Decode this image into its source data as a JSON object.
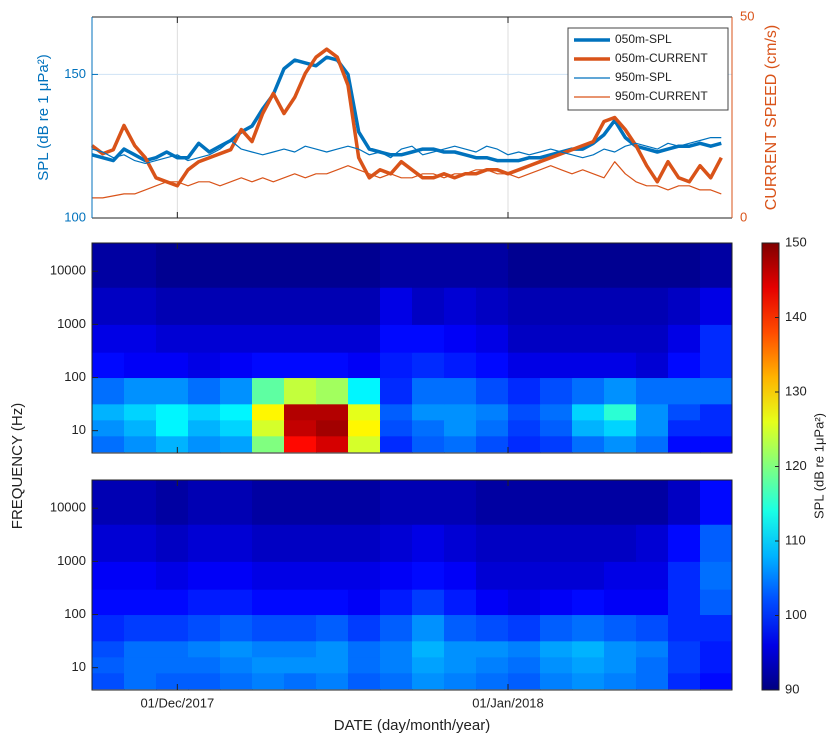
{
  "chart_data": [
    {
      "type": "line",
      "ylabel": "SPL (dB re 1 μPa²)",
      "y2label": "CURRENT SPEED (cm/s)",
      "x": [
        "2017-11-23",
        "2017-11-24",
        "2017-11-25",
        "2017-11-26",
        "2017-11-27",
        "2017-11-28",
        "2017-11-29",
        "2017-11-30",
        "2017-12-01",
        "2017-12-02",
        "2017-12-03",
        "2017-12-04",
        "2017-12-05",
        "2017-12-06",
        "2017-12-07",
        "2017-12-08",
        "2017-12-09",
        "2017-12-10",
        "2017-12-11",
        "2017-12-12",
        "2017-12-13",
        "2017-12-14",
        "2017-12-15",
        "2017-12-16",
        "2017-12-17",
        "2017-12-18",
        "2017-12-19",
        "2017-12-20",
        "2017-12-21",
        "2017-12-22",
        "2017-12-23",
        "2017-12-24",
        "2017-12-25",
        "2017-12-26",
        "2017-12-27",
        "2017-12-28",
        "2017-12-29",
        "2017-12-30",
        "2017-12-31",
        "2018-01-01",
        "2018-01-02",
        "2018-01-03",
        "2018-01-04",
        "2018-01-05",
        "2018-01-06",
        "2018-01-07",
        "2018-01-08",
        "2018-01-09",
        "2018-01-10",
        "2018-01-11",
        "2018-01-12",
        "2018-01-13",
        "2018-01-14",
        "2018-01-15",
        "2018-01-16",
        "2018-01-17",
        "2018-01-18",
        "2018-01-19",
        "2018-01-20",
        "2018-01-21"
      ],
      "xlim": [
        "2017-11-23",
        "2018-01-22"
      ],
      "xticks": [
        "2017-12-01",
        "2018-01-01"
      ],
      "ylim": [
        100,
        170
      ],
      "yticks": [
        100,
        150
      ],
      "y2lim": [
        0,
        50
      ],
      "y2ticks": [
        0,
        50
      ],
      "grid": true,
      "legend": "upper right",
      "series": [
        {
          "name": "050m-SPL",
          "color": "#0072bd",
          "width": 3.5,
          "values": [
            122,
            121,
            120,
            124,
            122,
            120,
            121,
            123,
            121,
            121,
            126,
            123,
            125,
            127,
            130,
            132,
            138,
            143,
            152,
            155,
            154,
            153,
            156,
            155,
            150,
            130,
            124,
            123,
            122,
            122,
            123,
            124,
            124,
            123,
            123,
            122,
            121,
            121,
            120,
            120,
            120,
            121,
            121,
            122,
            123,
            124,
            124,
            126,
            129,
            134,
            128,
            125,
            124,
            123,
            124,
            125,
            125,
            126,
            125,
            126
          ]
        },
        {
          "name": "050m-CURRENT",
          "color": "#d95319",
          "width": 3.5,
          "axis": "y2",
          "values": [
            18,
            16,
            17,
            23,
            18,
            15,
            10,
            9,
            8,
            12,
            14,
            15,
            16,
            17,
            22,
            19,
            26,
            31,
            26,
            30,
            36,
            40,
            42,
            40,
            33,
            15,
            10,
            12,
            11,
            14,
            12,
            10,
            10,
            11,
            10,
            11,
            11,
            12,
            12,
            11,
            12,
            13,
            14,
            15,
            16,
            17,
            18,
            19,
            24,
            25,
            22,
            18,
            13,
            9,
            14,
            10,
            9,
            13,
            10,
            15
          ]
        },
        {
          "name": "950m-SPL",
          "color": "#0072bd",
          "width": 1.2,
          "values": [
            124,
            123,
            121,
            122,
            120,
            119,
            120,
            121,
            122,
            120,
            121,
            122,
            124,
            127,
            124,
            123,
            122,
            123,
            124,
            123,
            125,
            124,
            123,
            124,
            125,
            124,
            122,
            123,
            121,
            124,
            125,
            122,
            123,
            124,
            125,
            124,
            123,
            125,
            124,
            122,
            123,
            122,
            123,
            124,
            123,
            122,
            121,
            122,
            124,
            123,
            125,
            126,
            125,
            124,
            126,
            125,
            126,
            127,
            128,
            128
          ]
        },
        {
          "name": "950m-CURRENT",
          "color": "#d95319",
          "width": 1.2,
          "axis": "y2",
          "values": [
            5,
            5,
            5.5,
            6,
            6,
            7,
            8,
            9,
            9,
            8,
            9,
            9,
            8,
            9,
            10,
            9,
            10,
            9,
            10,
            11,
            10,
            11,
            11,
            12,
            13,
            12,
            11,
            10,
            11,
            10,
            10,
            11,
            11,
            10,
            11,
            11,
            12,
            12,
            11,
            11,
            10,
            11,
            12,
            13,
            12,
            11,
            12,
            11,
            10,
            14,
            11,
            9,
            8,
            8,
            7,
            8,
            8,
            7,
            7,
            6
          ]
        }
      ]
    },
    {
      "type": "heatmap",
      "x_bins": [
        "2017-11-23",
        "2017-11-26",
        "2017-11-29",
        "2017-12-02",
        "2017-12-05",
        "2017-12-08",
        "2017-12-11",
        "2017-12-14",
        "2017-12-17",
        "2017-12-20",
        "2017-12-23",
        "2017-12-26",
        "2017-12-29",
        "2018-01-01",
        "2018-01-04",
        "2018-01-07",
        "2018-01-10",
        "2018-01-13",
        "2018-01-16",
        "2018-01-19",
        "2018-01-22"
      ],
      "y_bins": [
        4,
        8,
        16,
        32,
        100,
        300,
        1000,
        5000,
        34000
      ],
      "xlim": [
        "2017-11-23",
        "2018-01-22"
      ],
      "xticks": [
        "2017-12-01",
        "2018-01-01"
      ],
      "ylim": [
        3.8,
        34000
      ],
      "yscale": "log",
      "yticks": [
        10,
        100,
        1000,
        10000
      ],
      "colorbar": {
        "label": "SPL (dB re 1μPa²)",
        "clim": [
          90,
          150
        ],
        "ticks": [
          90,
          100,
          110,
          120,
          130,
          140,
          150
        ]
      },
      "z": [
        [
          104,
          106,
          108,
          106,
          107,
          120,
          142,
          145,
          125,
          100,
          103,
          104,
          102,
          100,
          101,
          104,
          106,
          104,
          98,
          98
        ],
        [
          106,
          108,
          112,
          108,
          110,
          125,
          146,
          148,
          128,
          102,
          104,
          106,
          104,
          101,
          103,
          108,
          110,
          106,
          100,
          100
        ],
        [
          108,
          110,
          112,
          110,
          112,
          128,
          147,
          147,
          126,
          103,
          106,
          106,
          105,
          102,
          104,
          110,
          115,
          106,
          102,
          100
        ],
        [
          104,
          106,
          106,
          104,
          106,
          118,
          124,
          122,
          112,
          100,
          104,
          104,
          102,
          100,
          102,
          104,
          106,
          104,
          104,
          104
        ],
        [
          98,
          97,
          97,
          96,
          97,
          98,
          98,
          98,
          97,
          99,
          100,
          99,
          98,
          96,
          96,
          96,
          96,
          95,
          98,
          100
        ],
        [
          96,
          96,
          95,
          95,
          95,
          95,
          95,
          95,
          95,
          98,
          98,
          97,
          96,
          94,
          94,
          94,
          94,
          94,
          96,
          100
        ],
        [
          94,
          94,
          93,
          93,
          93,
          93,
          93,
          93,
          93,
          96,
          94,
          95,
          94,
          93,
          93,
          93,
          93,
          93,
          94,
          96
        ],
        [
          92,
          92,
          91,
          91,
          91,
          91,
          91,
          91,
          91,
          92,
          92,
          92,
          92,
          91,
          91,
          91,
          91,
          91,
          91,
          92
        ]
      ]
    },
    {
      "type": "heatmap",
      "x_bins": [
        "2017-11-23",
        "2017-11-26",
        "2017-11-29",
        "2017-12-02",
        "2017-12-05",
        "2017-12-08",
        "2017-12-11",
        "2017-12-14",
        "2017-12-17",
        "2017-12-20",
        "2017-12-23",
        "2017-12-26",
        "2017-12-29",
        "2018-01-01",
        "2018-01-04",
        "2018-01-07",
        "2018-01-10",
        "2018-01-13",
        "2018-01-16",
        "2018-01-19",
        "2018-01-22"
      ],
      "y_bins": [
        4,
        8,
        16,
        32,
        100,
        300,
        1000,
        5000,
        34000
      ],
      "xlim": [
        "2017-11-23",
        "2018-01-22"
      ],
      "xticks": [
        {
          "value": "2017-12-01",
          "label": "01/Dec/2017"
        },
        {
          "value": "2018-01-01",
          "label": "01/Jan/2018"
        }
      ],
      "xlabel": "DATE (day/month/year)",
      "ylabel": "FREQUENCY (Hz)",
      "ylim": [
        3.8,
        34000
      ],
      "yscale": "log",
      "yticks": [
        10,
        100,
        1000,
        10000
      ],
      "z": [
        [
          102,
          104,
          103,
          103,
          104,
          105,
          104,
          105,
          103,
          104,
          106,
          105,
          104,
          103,
          105,
          106,
          105,
          104,
          100,
          98
        ],
        [
          103,
          104,
          104,
          104,
          105,
          106,
          106,
          106,
          104,
          105,
          107,
          106,
          105,
          104,
          106,
          107,
          106,
          104,
          101,
          99
        ],
        [
          102,
          104,
          104,
          105,
          106,
          105,
          105,
          106,
          104,
          105,
          108,
          106,
          106,
          105,
          107,
          108,
          106,
          105,
          101,
          99
        ],
        [
          100,
          101,
          101,
          102,
          103,
          102,
          102,
          103,
          101,
          103,
          106,
          103,
          102,
          101,
          103,
          104,
          103,
          102,
          100,
          100
        ],
        [
          98,
          98,
          98,
          99,
          99,
          98,
          98,
          98,
          97,
          99,
          101,
          99,
          97,
          96,
          97,
          98,
          97,
          97,
          100,
          103
        ],
        [
          97,
          97,
          96,
          97,
          97,
          96,
          96,
          96,
          96,
          97,
          98,
          97,
          95,
          95,
          95,
          95,
          96,
          96,
          100,
          104
        ],
        [
          95,
          95,
          94,
          95,
          95,
          94,
          94,
          94,
          94,
          95,
          96,
          95,
          94,
          94,
          94,
          94,
          94,
          95,
          98,
          103
        ],
        [
          93,
          93,
          92,
          93,
          93,
          92,
          92,
          92,
          92,
          93,
          93,
          93,
          92,
          92,
          92,
          92,
          92,
          92,
          94,
          98
        ]
      ]
    }
  ]
}
